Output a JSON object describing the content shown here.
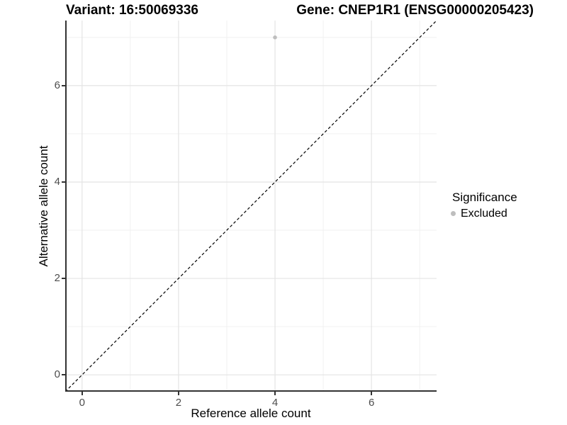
{
  "chart_data": {
    "type": "scatter",
    "title_variant": "Variant: 16:50069336",
    "title_gene": "Gene: CNEP1R1 (ENSG00000205423)",
    "xlabel": "Reference allele count",
    "ylabel": "Alternative allele count",
    "xlim": [
      -0.35,
      7.35
    ],
    "ylim": [
      -0.35,
      7.35
    ],
    "x_ticks": [
      0,
      2,
      4,
      6
    ],
    "y_ticks": [
      0,
      2,
      4,
      6
    ],
    "x_minor_ticks": [
      1,
      3,
      5,
      7
    ],
    "y_minor_ticks": [
      1,
      3,
      5,
      7
    ],
    "grid": "major+minor",
    "points": [
      {
        "x": 4,
        "y": 7,
        "series": "Excluded"
      }
    ],
    "reference_line": {
      "type": "identity",
      "slope": 1,
      "intercept": 0,
      "style": "dashed",
      "color": "#000000"
    },
    "legend": {
      "title": "Significance",
      "position": "right",
      "items": [
        {
          "label": "Excluded",
          "color": "#bebebe",
          "marker": "circle"
        }
      ]
    },
    "series_colors": {
      "Excluded": "#bebebe"
    }
  },
  "colors": {
    "background": "#ffffff",
    "grid_major": "#e4e4e4",
    "grid_minor": "#f1f1f1",
    "axis_line": "#333333",
    "tick_label": "#4d4d4d",
    "point_excluded": "#bebebe"
  }
}
